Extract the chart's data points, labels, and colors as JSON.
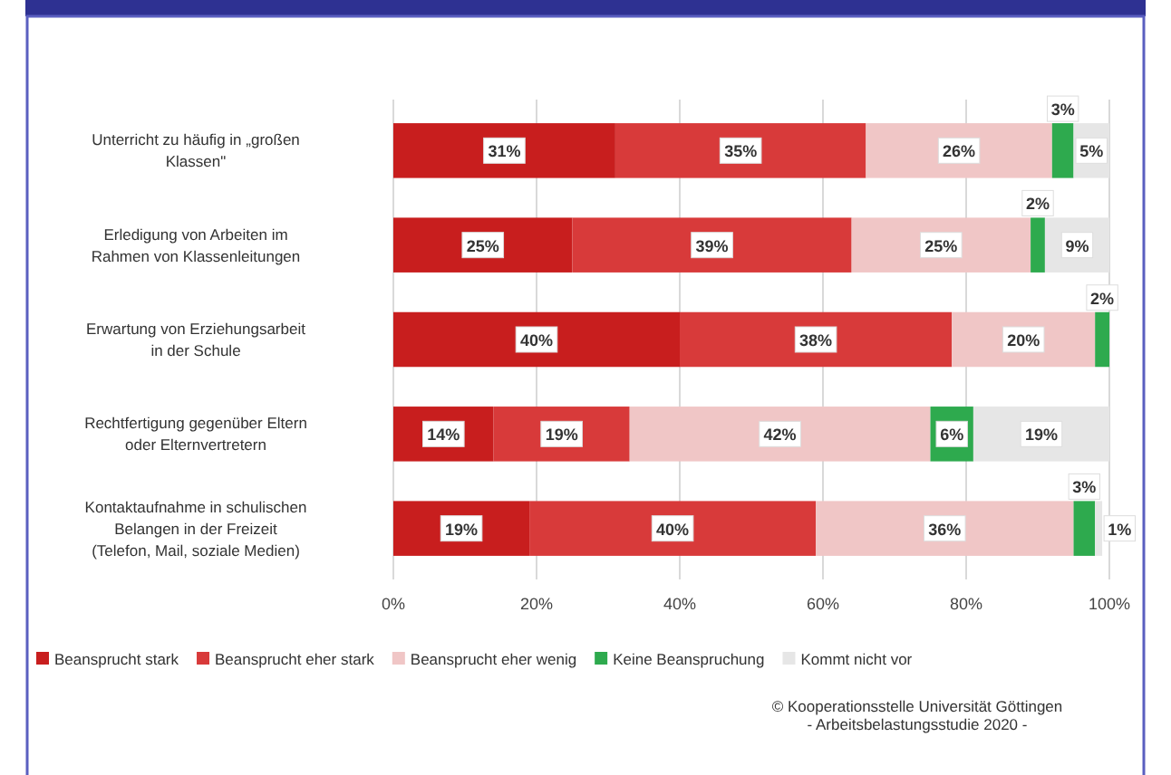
{
  "chart_data": {
    "type": "bar",
    "orientation": "horizontal",
    "stacked": true,
    "categories": [
      "Unterricht zu häufig in „großen Klassen\"",
      "Erledigung von Arbeiten im Rahmen von Klassenleitungen",
      "Erwartung von Erziehungsarbeit in der Schule",
      "Rechtfertigung gegenüber Eltern oder Elternvertretern",
      "Kontaktaufnahme in schulischen Belangen in der Freizeit (Telefon, Mail, soziale Medien)"
    ],
    "series": [
      {
        "name": "Beansprucht stark",
        "color": "#c81e1e",
        "values": [
          31,
          25,
          40,
          14,
          19
        ],
        "value_labels": [
          "31%",
          "25%",
          "40%",
          "14%",
          "19%"
        ]
      },
      {
        "name": "Beansprucht eher stark",
        "color": "#d83a3a",
        "values": [
          35,
          39,
          38,
          19,
          40
        ],
        "value_labels": [
          "35%",
          "39%",
          "38%",
          "19%",
          "40%"
        ]
      },
      {
        "name": "Beansprucht eher wenig",
        "color": "#f0c6c6",
        "values": [
          26,
          25,
          20,
          42,
          36
        ],
        "value_labels": [
          "26%",
          "25%",
          "20%",
          "42%",
          "36%"
        ]
      },
      {
        "name": "Keine Beanspruchung",
        "color": "#2eaa4e",
        "values": [
          3,
          2,
          2,
          6,
          3
        ],
        "value_labels": [
          "3%",
          "2%",
          "2%",
          "6%",
          "3%"
        ]
      },
      {
        "name": "Kommt nicht vor",
        "color": "#e6e6e6",
        "values": [
          5,
          9,
          0,
          19,
          1
        ],
        "value_labels": [
          "5%",
          "9%",
          null,
          "19%",
          "1%"
        ]
      }
    ],
    "xlim": [
      0,
      100
    ],
    "xticks": [
      {
        "value": 0,
        "label": "0%"
      },
      {
        "value": 20,
        "label": "20%"
      },
      {
        "value": 40,
        "label": "40%"
      },
      {
        "value": 60,
        "label": "60%"
      },
      {
        "value": 80,
        "label": "80%"
      },
      {
        "value": 100,
        "label": "100%"
      }
    ],
    "grid": "x",
    "legend": "bottom",
    "annotations": [
      "© Kooperationsstelle Universität Göttingen",
      "- Arbeitsbelastungsstudie 2020 -"
    ]
  }
}
